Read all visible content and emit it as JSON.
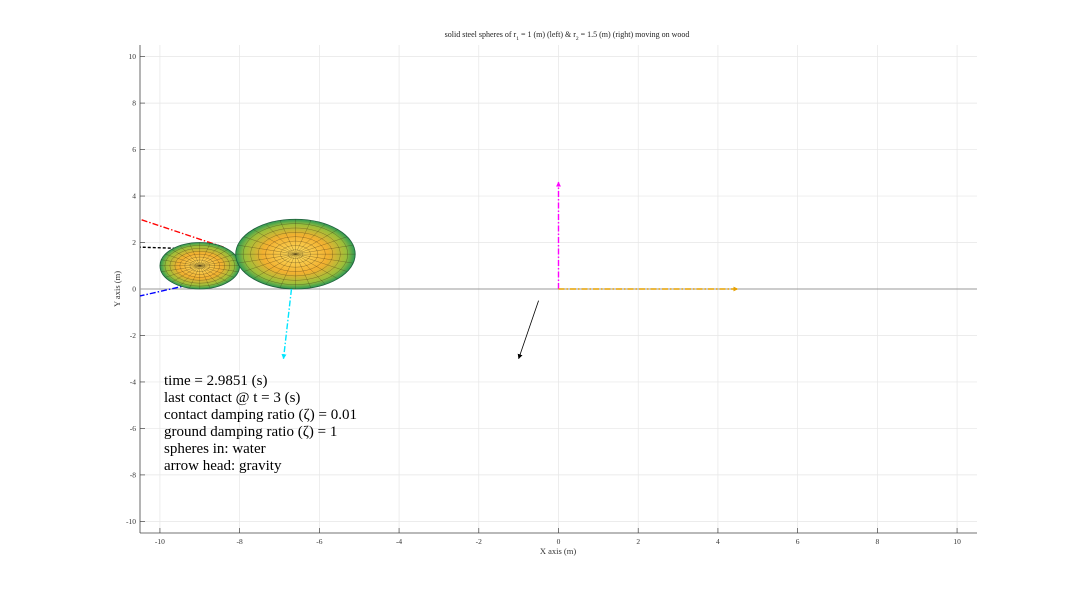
{
  "chart_data": {
    "type": "scatter",
    "title": {
      "prefix": "solid steel spheres of r",
      "sub1": "1",
      "mid1": " = 1 (m) (left) & r",
      "sub2": "2",
      "mid2": " = 1.5 (m) (right) moving on wood"
    },
    "xlabel": "X axis (m)",
    "ylabel": "Y axis (m)",
    "xlim": [
      -10.5,
      10.5
    ],
    "ylim": [
      -10.5,
      10.5
    ],
    "xticks": [
      -10,
      -8,
      -6,
      -4,
      -2,
      0,
      2,
      4,
      6,
      8,
      10
    ],
    "yticks": [
      -10,
      -8,
      -6,
      -4,
      -2,
      0,
      2,
      4,
      6,
      8,
      10
    ],
    "grid": true,
    "ground_y": 0,
    "spheres": [
      {
        "name": "r1",
        "cx": -9.0,
        "cy": 1.0,
        "r": 1.0
      },
      {
        "name": "r2",
        "cx": -6.6,
        "cy": 1.5,
        "r": 1.5
      }
    ],
    "lines": [
      {
        "name": "red-line",
        "x": [
          -8.4,
          -10.5
        ],
        "y": [
          1.8,
          3.0
        ],
        "color": "#ff0000",
        "style": "dashdot"
      },
      {
        "name": "black-line",
        "x": [
          -8.6,
          -10.5
        ],
        "y": [
          1.7,
          1.8
        ],
        "color": "#000000",
        "style": "dashed"
      },
      {
        "name": "blue-line",
        "x": [
          -8.7,
          -10.5
        ],
        "y": [
          0.4,
          -0.3
        ],
        "color": "#0000ff",
        "style": "dashdot"
      }
    ],
    "arrows": [
      {
        "name": "cyan-arrow",
        "x0": -6.7,
        "y0": 0.0,
        "x1": -6.9,
        "y1": -3.0,
        "color": "#00e5ff",
        "style": "dashdot"
      },
      {
        "name": "magenta-arrow",
        "x0": 0.0,
        "y0": 0.0,
        "x1": 0.0,
        "y1": 4.6,
        "color": "#ff00ff",
        "style": "dashdot"
      },
      {
        "name": "orange-arrow",
        "x0": 0.0,
        "y0": 0.0,
        "x1": 4.5,
        "y1": 0.0,
        "color": "#e6a000",
        "style": "dashdot"
      },
      {
        "name": "gravity-arrow",
        "x0": -0.5,
        "y0": -0.5,
        "x1": -1.0,
        "y1": -3.0,
        "color": "#000000",
        "style": "solid"
      }
    ],
    "annotations": [
      "time = 2.9851 (s)",
      "last contact @ t = 3 (s)",
      "contact damping ratio (ζ) = 0.01",
      "ground damping ratio (ζ) = 1",
      "spheres in: water",
      "arrow head: gravity"
    ]
  }
}
